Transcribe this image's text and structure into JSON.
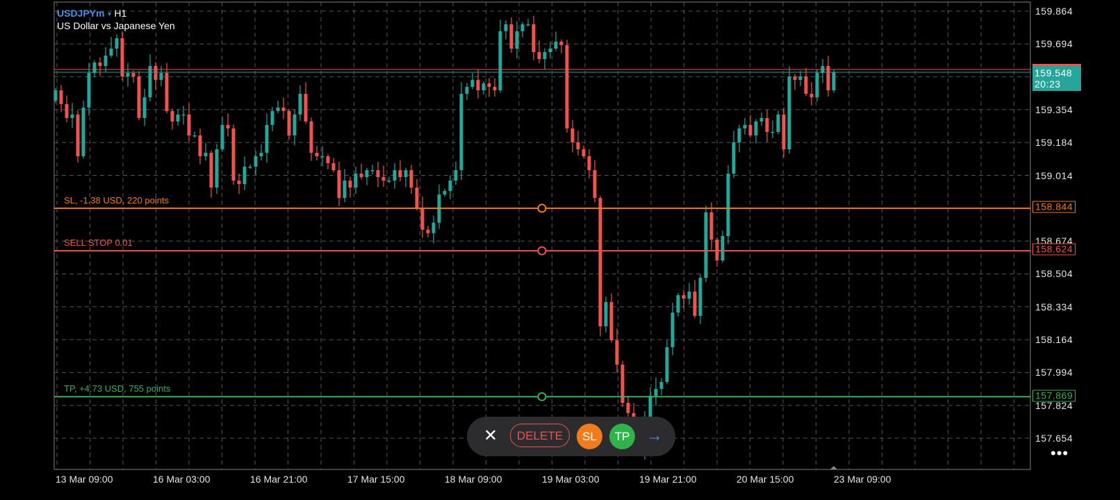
{
  "header": {
    "symbol": "USDJPYm",
    "timeframe": "H1",
    "description": "US Dollar vs Japanese Yen"
  },
  "colors": {
    "bull": "#26a69a",
    "bear": "#ef5350",
    "sl": "#f07c1e",
    "order": "#ef5350",
    "tp": "#3cb054",
    "grid": "#555555",
    "ask": "#ef5350",
    "bid": "#26a69a"
  },
  "price_axis": {
    "ticks": [
      "159.864",
      "159.694",
      "159.354",
      "159.184",
      "159.014",
      "158.674",
      "158.504",
      "158.334",
      "158.164",
      "157.994",
      "157.824",
      "157.654"
    ],
    "current_price": "159.548",
    "countdown": "20:23"
  },
  "time_axis": {
    "labels": [
      "13 Mar 09:00",
      "16 Mar 03:00",
      "16 Mar 21:00",
      "17 Mar 15:00",
      "18 Mar 09:00",
      "19 Mar 03:00",
      "19 Mar 21:00",
      "20 Mar 15:00",
      "23 Mar 09:00"
    ]
  },
  "order_lines": {
    "sl": {
      "label": "SL, -1.38 USD, 220 points",
      "price": "158.844"
    },
    "order": {
      "label": "SELL STOP 0.01",
      "price": "158.624"
    },
    "tp": {
      "label": "TP, +4.73 USD, 755 points",
      "price": "157.869"
    }
  },
  "toolbar": {
    "close_icon": "close-icon",
    "delete_label": "DELETE",
    "sl_label": "SL",
    "tp_label": "TP",
    "confirm_icon": "arrow-right-icon"
  },
  "menu": {
    "icon": "more-dots-icon",
    "label": "•••"
  },
  "chart_data": {
    "type": "candlestick",
    "symbol": "USDJPYm",
    "timeframe": "H1",
    "ylim": [
      157.55,
      159.9
    ],
    "close": [
      159.454,
      159.383,
      159.311,
      159.329,
      159.113,
      159.365,
      159.544,
      159.598,
      159.58,
      159.634,
      159.67,
      159.724,
      159.526,
      159.544,
      159.526,
      159.311,
      159.418,
      159.58,
      159.508,
      159.544,
      159.347,
      159.293,
      159.329,
      159.329,
      159.221,
      159.221,
      159.113,
      159.131,
      158.951,
      159.149,
      159.275,
      159.257,
      158.987,
      158.969,
      159.059,
      159.059,
      159.113,
      159.131,
      159.275,
      159.347,
      159.365,
      159.347,
      159.221,
      159.329,
      159.436,
      159.293,
      159.131,
      159.113,
      159.113,
      159.077,
      159.041,
      158.897,
      158.987,
      158.951,
      159.023,
      159.005,
      159.041,
      159.041,
      159.005,
      158.987,
      158.987,
      159.041,
      159.005,
      159.041,
      158.951,
      158.844,
      158.733,
      158.715,
      158.769,
      158.915,
      158.933,
      158.987,
      159.041,
      159.436,
      159.472,
      159.508,
      159.454,
      159.49,
      159.472,
      159.454,
      159.76,
      159.796,
      159.67,
      159.76,
      159.796,
      159.796,
      159.652,
      159.616,
      159.652,
      159.67,
      159.706,
      159.688,
      159.257,
      159.185,
      159.149,
      159.113,
      159.041,
      158.897,
      158.233,
      158.359,
      158.161,
      158.035,
      157.837,
      157.784,
      157.694,
      157.586,
      157.766,
      157.873,
      157.909,
      157.945,
      158.125,
      158.304,
      158.394,
      158.376,
      158.413,
      158.287,
      158.484,
      158.823,
      158.682,
      158.574,
      158.7,
      159.023,
      159.185,
      159.257,
      159.275,
      159.221,
      159.293,
      159.311,
      159.239,
      159.239,
      159.329,
      159.149,
      159.526,
      159.508,
      159.526,
      159.436,
      159.418,
      159.544,
      159.58,
      159.454,
      159.548
    ]
  }
}
